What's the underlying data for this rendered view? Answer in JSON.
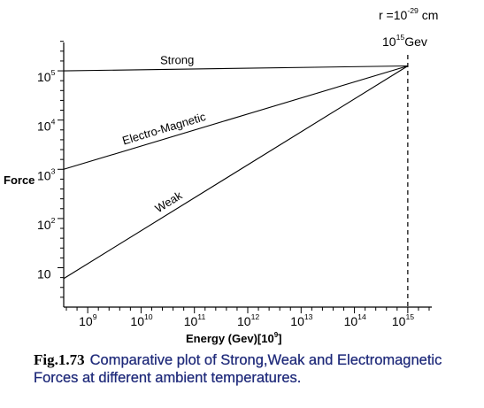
{
  "chart_data": {
    "type": "line",
    "ylabel": "Force",
    "xlabel": "Energy (Gev)[10",
    "xlabel_exp": "9",
    "xlabel_close": "]",
    "x_ticks": [
      {
        "base": "10",
        "exp": "9",
        "value": 9
      },
      {
        "base": "10",
        "exp": "10",
        "value": 10
      },
      {
        "base": "10",
        "exp": "11",
        "value": 11
      },
      {
        "base": "10",
        "exp": "12",
        "value": 12
      },
      {
        "base": "10",
        "exp": "13",
        "value": 13
      },
      {
        "base": "10",
        "exp": "14",
        "value": 14
      },
      {
        "base": "10",
        "exp": "15",
        "value": 15
      }
    ],
    "y_ticks": [
      {
        "base": "10",
        "exp": "",
        "value": 1
      },
      {
        "base": "10",
        "exp": "2",
        "value": 2
      },
      {
        "base": "10",
        "exp": "3",
        "value": 3
      },
      {
        "base": "10",
        "exp": "4",
        "value": 4
      },
      {
        "base": "10",
        "exp": "5",
        "value": 5
      }
    ],
    "xlim": [
      8.55,
      15.45
    ],
    "ylim": [
      0.2,
      5.9
    ],
    "x_scale": "log",
    "y_scale": "log",
    "grid": false,
    "series": [
      {
        "name": "Strong",
        "x": [
          8.55,
          15.0
        ],
        "y": [
          5.0,
          5.1
        ]
      },
      {
        "name": "Electro-Magnetic",
        "x": [
          8.55,
          15.0
        ],
        "y": [
          3.0,
          5.1
        ]
      },
      {
        "name": "Weak",
        "x": [
          8.55,
          15.0
        ],
        "y": [
          0.78,
          5.1
        ]
      }
    ],
    "annotations": {
      "radius": {
        "text": "r =10",
        "exp": "-29",
        "unit": " cm"
      },
      "energy": {
        "text": "10",
        "exp": "15",
        "unit": "Gev"
      }
    }
  },
  "caption": {
    "fig_label": "Fig.1.73",
    "text": "Comparative plot of Strong,Weak and Electromagnetic Forces at different ambient temperatures."
  }
}
